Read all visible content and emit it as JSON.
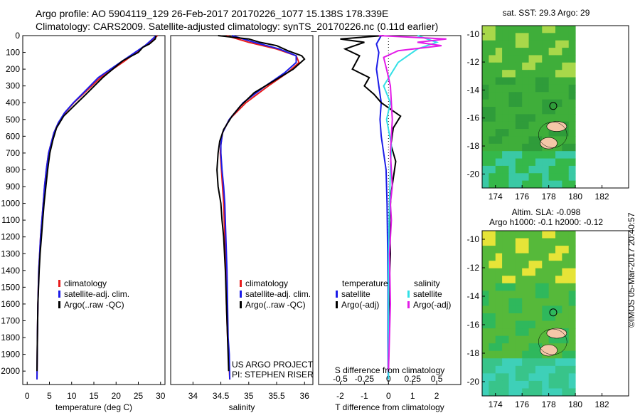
{
  "header": {
    "line1": "Argo profile: AO 5904119_129 26-Feb-2017 20170226_1077 15.138S 178.339E",
    "line2": "Climatology: CARS2009. Satellite-adjusted climatology: synTS_20170226.nc (0.11d earlier)"
  },
  "credit": "©IMOS 05-Mar-2017 20:40:57",
  "map_top": {
    "title": "sat. SST: 29.3 Argo: 29"
  },
  "map_bottom": {
    "title1": "Altim. SLA: -0.098",
    "title2": "Argo h1000: -0.1 h2000: -0.12"
  },
  "map_axes": {
    "lon_ticks": [
      174,
      176,
      178,
      180,
      182
    ],
    "lat_ticks": [
      -10,
      -12,
      -14,
      -16,
      -18,
      -20
    ],
    "lon_range": [
      173,
      184
    ],
    "lat_range": [
      -21,
      -9.4
    ],
    "argo_position": {
      "lon": 178.339,
      "lat": -15.138
    }
  },
  "depth_axis": {
    "ticks": [
      0,
      100,
      200,
      300,
      400,
      500,
      600,
      700,
      800,
      900,
      1000,
      1100,
      1200,
      1300,
      1400,
      1500,
      1600,
      1700,
      1800,
      1900,
      2000
    ],
    "range": [
      0,
      2080
    ]
  },
  "legend_common": {
    "climatology": "climatology",
    "satellite": "satellite-adj. clim.",
    "argo": "Argo(..raw -QC)"
  },
  "legend_diff": {
    "temperature": "temperature",
    "salinity": "salinity",
    "t_sat": "satellite",
    "t_argo": "Argo(-adj)",
    "s_sat": "satellite",
    "s_argo": "Argo(-adj)"
  },
  "project": {
    "line1": "US ARGO PROJECT",
    "line2": "PI: STEPHEN RISER"
  },
  "colors": {
    "climatology": "#e81c1c",
    "satellite": "#1c1ce8",
    "argo": "#000000",
    "t_sat": "#1c1ce8",
    "t_argo": "#000000",
    "s_sat": "#33e0e6",
    "s_argo": "#e31ce8"
  },
  "chart_data": [
    {
      "type": "line",
      "xlabel": "temperature (deg C)",
      "ylabel": "",
      "xlim": [
        -1,
        31
      ],
      "ylim": [
        2080,
        0
      ],
      "x_ticks": [
        0,
        5,
        10,
        15,
        20,
        25,
        30
      ],
      "series": [
        {
          "name": "climatology",
          "x": [
            29.3,
            28.5,
            26.5,
            22,
            16.5,
            12.5,
            10.5,
            8.5,
            7.0,
            6.0,
            5.3,
            4.8,
            4.3,
            3.9,
            3.6,
            3.3,
            3.0,
            2.8,
            2.6,
            2.4,
            2.3,
            2.2
          ],
          "y": [
            0,
            20,
            60,
            150,
            250,
            350,
            400,
            460,
            520,
            580,
            650,
            700,
            800,
            900,
            1000,
            1100,
            1200,
            1300,
            1400,
            1600,
            1800,
            2050
          ]
        },
        {
          "name": "satellite-adj. clim.",
          "x": [
            29.0,
            28.2,
            26.5,
            21.5,
            16,
            12.3,
            10.4,
            8.4,
            7.0,
            6.0,
            5.3,
            4.8,
            4.3,
            3.9,
            3.6,
            3.3,
            3.0,
            2.8,
            2.6,
            2.4,
            2.3,
            2.2
          ],
          "y": [
            0,
            20,
            60,
            150,
            250,
            350,
            400,
            460,
            520,
            580,
            650,
            700,
            800,
            900,
            1000,
            1100,
            1200,
            1300,
            1400,
            1600,
            1800,
            2050
          ]
        },
        {
          "name": "Argo(..raw -QC)",
          "x": [
            29.0,
            28.8,
            27.5,
            26.0,
            25.0,
            21.5,
            17,
            13.2,
            10.5,
            8.2,
            6.6,
            5.8,
            5.1,
            4.6,
            4.2,
            3.8,
            3.5,
            3.2,
            2.9,
            2.7,
            2.4,
            2.3,
            2.2
          ],
          "y": [
            0,
            20,
            50,
            70,
            100,
            150,
            250,
            350,
            420,
            480,
            550,
            620,
            700,
            800,
            900,
            1000,
            1100,
            1200,
            1300,
            1400,
            1600,
            1800,
            2000
          ]
        }
      ]
    },
    {
      "type": "line",
      "xlabel": "salinity",
      "ylabel": "",
      "xlim": [
        33.6,
        36.15
      ],
      "ylim": [
        2080,
        0
      ],
      "x_ticks": [
        34,
        34.5,
        35,
        35.5,
        36
      ],
      "series": [
        {
          "name": "climatology",
          "x": [
            34.6,
            35.0,
            35.5,
            35.85,
            35.9,
            35.7,
            35.35,
            34.95,
            34.65,
            34.53,
            34.5,
            34.49,
            34.51,
            34.53,
            34.55,
            34.57,
            34.59,
            34.6,
            34.62,
            34.64,
            34.66
          ],
          "y": [
            0,
            40,
            80,
            120,
            160,
            220,
            300,
            400,
            500,
            580,
            650,
            700,
            800,
            900,
            1000,
            1200,
            1400,
            1600,
            1800,
            1900,
            2050
          ]
        },
        {
          "name": "satellite-adj. clim.",
          "x": [
            34.7,
            35.1,
            35.55,
            35.85,
            35.85,
            35.65,
            35.3,
            34.9,
            34.65,
            34.53,
            34.5,
            34.5,
            34.52,
            34.55,
            34.57,
            34.59,
            34.61,
            34.62,
            34.63,
            34.65,
            34.66
          ],
          "y": [
            0,
            40,
            80,
            120,
            160,
            220,
            300,
            400,
            500,
            580,
            650,
            700,
            800,
            900,
            1000,
            1200,
            1400,
            1600,
            1800,
            1900,
            2050
          ]
        },
        {
          "name": "Argo(..raw -QC)",
          "x": [
            34.45,
            35.0,
            35.2,
            35.5,
            35.7,
            35.95,
            36.0,
            35.8,
            35.45,
            35.1,
            34.85,
            34.7,
            34.55,
            34.48,
            34.45,
            34.43,
            34.45,
            34.5,
            34.52,
            34.55,
            34.58,
            34.6,
            34.62,
            34.64
          ],
          "y": [
            0,
            20,
            40,
            60,
            90,
            120,
            140,
            200,
            270,
            340,
            420,
            480,
            560,
            630,
            700,
            800,
            900,
            1000,
            1100,
            1200,
            1400,
            1600,
            1800,
            2000
          ]
        }
      ]
    },
    {
      "type": "line",
      "xlabel": "T difference from climatology",
      "x2label": "S difference from climatology",
      "ylabel": "",
      "xlim": [
        -2.9,
        3.0
      ],
      "ylim": [
        2080,
        0
      ],
      "x_ticks": [
        -2,
        -1,
        0,
        1,
        2
      ],
      "x2_ticks": [
        -0.5,
        -0.25,
        0,
        0.25,
        0.5
      ],
      "x2_tick_labels": [
        "-0.5",
        "-0.25",
        "0",
        "0.25",
        "0.5"
      ],
      "s_scale_factor": 4,
      "series": [
        {
          "name": "temperature satellite",
          "axis": "T",
          "x": [
            -0.3,
            -0.5,
            -0.4,
            -0.5,
            -0.4,
            -0.3,
            -0.35,
            -0.3,
            -0.2,
            -0.1,
            -0.08,
            -0.06,
            -0.04,
            -0.02,
            -0.02,
            -0.01
          ],
          "y": [
            0,
            50,
            100,
            200,
            300,
            400,
            500,
            600,
            700,
            800,
            900,
            1000,
            1200,
            1500,
            1800,
            2050
          ]
        },
        {
          "name": "temperature Argo(-adj)",
          "axis": "T",
          "x": [
            -0.2,
            -2.0,
            -1.0,
            -1.8,
            -1.2,
            -1.5,
            -0.8,
            -1.0,
            -0.6,
            -0.3,
            0.5,
            0.2,
            0.1,
            0.3,
            0.2,
            0.1,
            0.05,
            0.08,
            0.03,
            0.02,
            0.0
          ],
          "y": [
            0,
            20,
            40,
            80,
            120,
            200,
            250,
            300,
            350,
            400,
            480,
            550,
            650,
            750,
            850,
            950,
            1100,
            1300,
            1500,
            1800,
            2000
          ]
        },
        {
          "name": "salinity satellite",
          "axis": "S",
          "x": [
            0.3,
            0.5,
            0.3,
            0.1,
            -0.05,
            0.02,
            -0.02,
            0.03,
            0.02,
            0.01,
            0.0,
            0.0,
            0.0
          ],
          "y": [
            0,
            40,
            80,
            160,
            300,
            400,
            500,
            650,
            800,
            1000,
            1300,
            1700,
            2050
          ]
        },
        {
          "name": "salinity Argo(-adj)",
          "axis": "S",
          "x": [
            -0.1,
            0.6,
            0.3,
            0.55,
            0.1,
            -0.05,
            -0.02,
            0.02,
            0.04,
            0.02,
            0.04,
            0.02,
            0.03,
            0.01,
            0.02,
            0.0
          ],
          "y": [
            0,
            20,
            40,
            60,
            90,
            130,
            200,
            300,
            500,
            700,
            900,
            1000,
            1100,
            1300,
            1600,
            2000
          ]
        }
      ]
    }
  ]
}
